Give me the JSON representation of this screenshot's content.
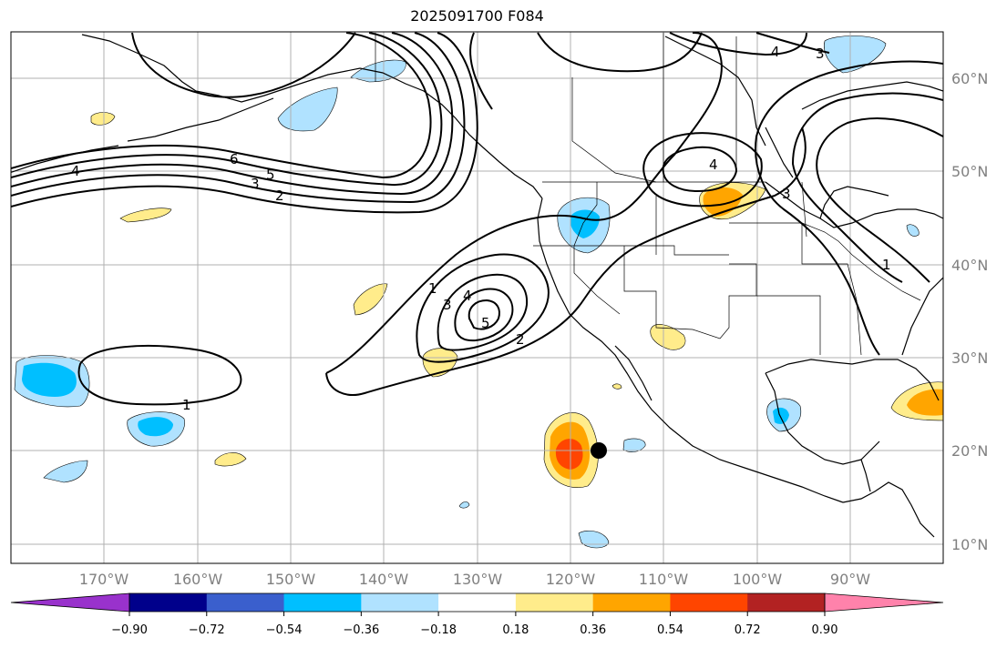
{
  "title": "2025091700 F084",
  "lat_labels": [
    "60°N",
    "50°N",
    "40°N",
    "30°N",
    "20°N",
    "10°N"
  ],
  "lon_labels": [
    "170°W",
    "160°W",
    "150°W",
    "140°W",
    "130°W",
    "120°W",
    "110°W",
    "100°W",
    "90°W"
  ],
  "contour_labels": [
    "6",
    "5",
    "3",
    "2",
    "4",
    "1",
    "3",
    "4",
    "5",
    "2",
    "4",
    "3",
    "4",
    "3",
    "1",
    "1"
  ],
  "colorbar": {
    "ticks": [
      "−0.90",
      "−0.72",
      "−0.54",
      "−0.36",
      "−0.18",
      "0.18",
      "0.36",
      "0.54",
      "0.72",
      "0.90"
    ],
    "colors": [
      "#9932cc",
      "#00008b",
      "#3a5fcd",
      "#00bfff",
      "#b0e2ff",
      "#ffffff",
      "#ffec8b",
      "#ffa500",
      "#ff4500",
      "#b22222",
      "#ff82ab"
    ]
  },
  "marker": "storm-position-dot"
}
